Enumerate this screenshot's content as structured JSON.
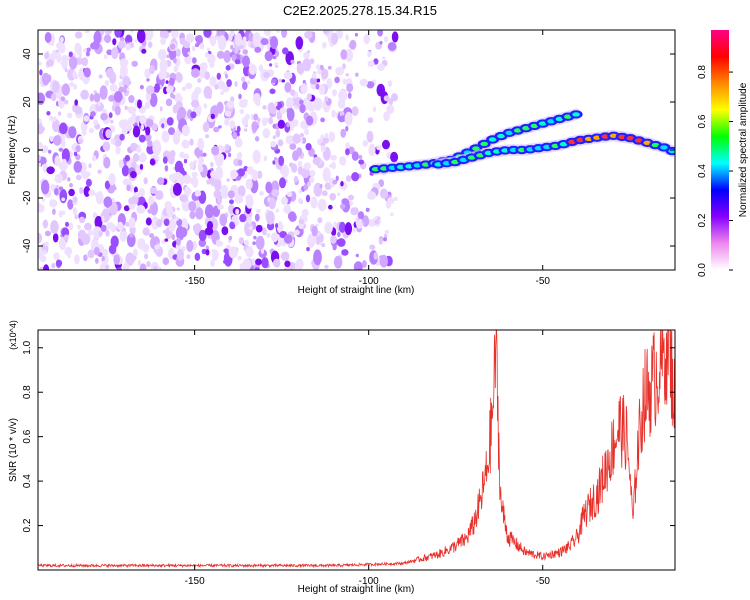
{
  "title": "C2E2.2025.278.15.34.R15",
  "chart_data": [
    {
      "type": "heatmap",
      "xlabel": "Height of straight line (km)",
      "ylabel": "Frequency (Hz)",
      "xlim": [
        -195,
        -12
      ],
      "ylim": [
        -50,
        50
      ],
      "xticks": [
        -150,
        -100,
        -50
      ],
      "yticks": [
        -40,
        -20,
        0,
        20,
        40
      ],
      "colorbar": {
        "label": "Normalized spectral amplitude",
        "range": [
          0,
          0.97
        ],
        "ticks": [
          0.0,
          0.2,
          0.4,
          0.6,
          0.8
        ],
        "colors": [
          "#ffffff",
          "#ee88ee",
          "#8800ff",
          "#0000ff",
          "#00ffff",
          "#00ff00",
          "#ffff00",
          "#ff8800",
          "#ff0000",
          "#ff0088"
        ]
      },
      "noise_region_km": [
        -195,
        -92
      ],
      "traces": [
        {
          "name": "upper trace",
          "points": [
            [
              -98,
              -8
            ],
            [
              -90,
              -7
            ],
            [
              -83,
              -6
            ],
            [
              -76,
              -4
            ],
            [
              -70,
              0
            ],
            [
              -65,
              4
            ],
            [
              -60,
              7
            ],
            [
              -55,
              9
            ],
            [
              -50,
              11
            ],
            [
              -45,
              13
            ],
            [
              -40,
              15
            ]
          ]
        },
        {
          "name": "lower trace",
          "points": [
            [
              -80,
              -6
            ],
            [
              -75,
              -5
            ],
            [
              -70,
              -3
            ],
            [
              -65,
              -1
            ],
            [
              -60,
              0
            ],
            [
              -55,
              0
            ],
            [
              -50,
              1
            ],
            [
              -45,
              2
            ],
            [
              -40,
              4
            ],
            [
              -35,
              5
            ],
            [
              -30,
              6
            ],
            [
              -25,
              5
            ],
            [
              -20,
              3
            ],
            [
              -15,
              1
            ],
            [
              -12,
              -1
            ]
          ]
        }
      ]
    },
    {
      "type": "line",
      "xlabel": "Height of straight line (km)",
      "ylabel": "SNR (10 * v/v)",
      "multiplier": "(x10^4)",
      "xlim": [
        -195,
        -12
      ],
      "ylim": [
        0,
        1.08
      ],
      "xticks": [
        -150,
        -100,
        -50
      ],
      "yticks": [
        0.2,
        0.4,
        0.6,
        0.8,
        1.0
      ],
      "color": "#e8302a",
      "envelope": [
        [
          -195,
          0.02
        ],
        [
          -110,
          0.02
        ],
        [
          -100,
          0.025
        ],
        [
          -90,
          0.03
        ],
        [
          -85,
          0.05
        ],
        [
          -80,
          0.07
        ],
        [
          -76,
          0.1
        ],
        [
          -72,
          0.14
        ],
        [
          -70,
          0.2
        ],
        [
          -68,
          0.3
        ],
        [
          -66,
          0.45
        ],
        [
          -65,
          0.6
        ],
        [
          -64,
          0.8
        ],
        [
          -63.5,
          1.06
        ],
        [
          -62.5,
          0.5
        ],
        [
          -62,
          0.3
        ],
        [
          -60,
          0.15
        ],
        [
          -55,
          0.08
        ],
        [
          -50,
          0.06
        ],
        [
          -45,
          0.08
        ],
        [
          -42,
          0.11
        ],
        [
          -40,
          0.15
        ],
        [
          -38,
          0.25
        ],
        [
          -36,
          0.3
        ],
        [
          -34,
          0.35
        ],
        [
          -32,
          0.45
        ],
        [
          -30,
          0.55
        ],
        [
          -28,
          0.65
        ],
        [
          -26,
          0.6
        ],
        [
          -25,
          0.45
        ],
        [
          -24.5,
          0.3
        ],
        [
          -24,
          0.22
        ],
        [
          -23,
          0.5
        ],
        [
          -21,
          0.78
        ],
        [
          -19,
          0.82
        ],
        [
          -17,
          0.9
        ],
        [
          -15,
          0.98
        ],
        [
          -14,
          1.05
        ],
        [
          -13,
          0.9
        ],
        [
          -12,
          0.75
        ]
      ]
    }
  ]
}
